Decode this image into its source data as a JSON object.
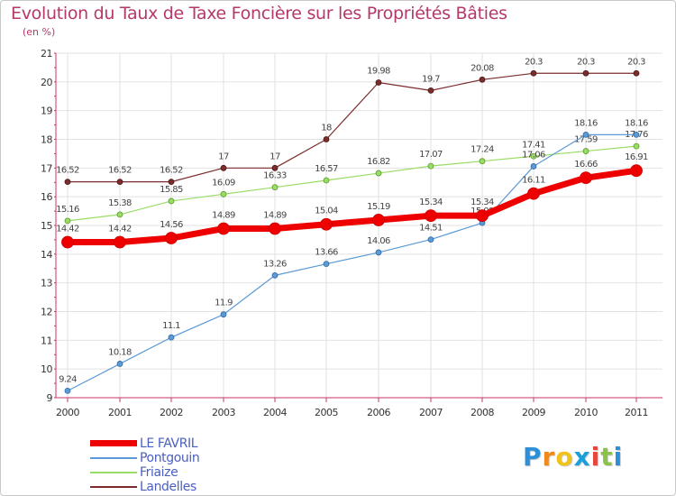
{
  "chart_data": {
    "type": "line",
    "title": "Evolution du Taux de Taxe Foncière sur les Propriétés Bâties",
    "unit_label": "(en %)",
    "xlabel": "",
    "ylabel": "",
    "ylim": [
      9,
      21
    ],
    "yticks": [
      "9",
      "10",
      "11",
      "12",
      "13",
      "14",
      "15",
      "16",
      "17",
      "18",
      "19",
      "20",
      "21"
    ],
    "categories": [
      "2000",
      "2001",
      "2002",
      "2003",
      "2004",
      "2005",
      "2006",
      "2007",
      "2008",
      "2009",
      "2010",
      "2011"
    ],
    "grid": true,
    "legend_position": "bottom-left",
    "series": [
      {
        "name": "Landelles",
        "color": "#7b2c2c",
        "values": [
          16.52,
          16.52,
          16.52,
          17,
          17,
          18,
          19.98,
          19.7,
          20.08,
          20.3,
          20.3,
          20.3
        ],
        "labels": [
          "16.52",
          "16.52",
          "16.52",
          "17",
          "17",
          "18",
          "19.98",
          "19.7",
          "20.08",
          "20.3",
          "20.3",
          "20.3"
        ]
      },
      {
        "name": "Friaize",
        "color": "#99dd66",
        "values": [
          15.16,
          15.38,
          15.85,
          16.09,
          16.33,
          16.57,
          16.82,
          17.07,
          17.24,
          17.41,
          17.59,
          17.76
        ],
        "labels": [
          "15.16",
          "15.38",
          "15.85",
          "16.09",
          "16.33",
          "16.57",
          "16.82",
          "17.07",
          "17.24",
          "17.41",
          "17.59",
          "17.76"
        ]
      },
      {
        "name": "Pontgouin",
        "color": "#5b9ad5",
        "values": [
          9.24,
          10.18,
          11.1,
          11.9,
          13.26,
          13.66,
          14.06,
          14.51,
          15.09,
          17.06,
          18.16,
          18.16
        ],
        "labels": [
          "9.24",
          "10.18",
          "11.1",
          "11.9",
          "13.26",
          "13.66",
          "14.06",
          "14.51",
          "15.09",
          "17.06",
          "18.16",
          "18.16"
        ]
      },
      {
        "name": "LE FAVRIL",
        "color": "#ee0000",
        "values": [
          14.42,
          14.42,
          14.56,
          14.89,
          14.89,
          15.04,
          15.19,
          15.34,
          15.34,
          16.11,
          16.66,
          16.91
        ],
        "labels": [
          "14.42",
          "14.42",
          "14.56",
          "14.89",
          "14.89",
          "15.04",
          "15.19",
          "15.34",
          "15.34",
          "16.11",
          "16.66",
          "16.91"
        ]
      }
    ],
    "legend_order": [
      "LE FAVRIL",
      "Pontgouin",
      "Friaize",
      "Landelles"
    ]
  },
  "logo": {
    "letters": [
      "P",
      "r",
      "o",
      "x",
      "i",
      "t",
      "i"
    ],
    "colors": [
      "#2d8fd8",
      "#f08a1c",
      "#f0c21c",
      "#1b9fd8",
      "#e8453c",
      "#8bc34a",
      "#2d8fd8"
    ]
  }
}
